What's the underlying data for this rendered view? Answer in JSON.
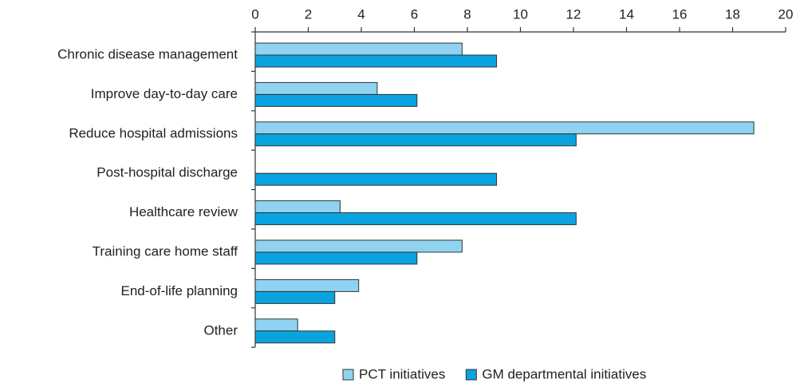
{
  "chart_data": {
    "type": "hbar",
    "categories": [
      "Chronic disease management",
      "Improve day-to-day care",
      "Reduce hospital admissions",
      "Post-hospital discharge",
      "Healthcare review",
      "Training care home staff",
      "End-of-life planning",
      "Other"
    ],
    "series": [
      {
        "name": "PCT initiatives",
        "color": "#8fd3f0",
        "values": [
          7.8,
          4.6,
          18.8,
          0,
          3.2,
          7.8,
          3.9,
          1.6
        ]
      },
      {
        "name": "GM departmental initiatives",
        "color": "#0aa3e0",
        "values": [
          9.1,
          6.1,
          12.1,
          9.1,
          12.1,
          6.1,
          3.0,
          3.0
        ]
      }
    ],
    "xlim": [
      0,
      20
    ],
    "xticks": [
      0,
      2,
      4,
      6,
      8,
      10,
      12,
      14,
      16,
      18,
      20
    ],
    "legend": "bottom"
  }
}
